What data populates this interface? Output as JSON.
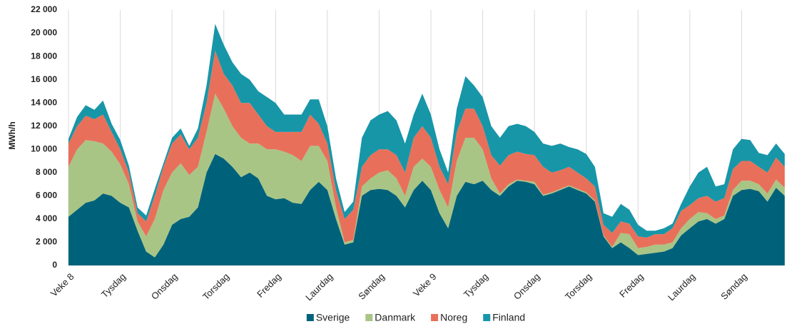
{
  "chart_data": {
    "type": "stacked_area",
    "y_label": "MWh/h",
    "categories": [
      "Veke 8",
      null,
      null,
      null,
      null,
      null,
      "Tysdag",
      null,
      null,
      null,
      null,
      null,
      "Onsdag",
      null,
      null,
      null,
      null,
      null,
      "Torsdag",
      null,
      null,
      null,
      null,
      null,
      "Fredag",
      null,
      null,
      null,
      null,
      null,
      "Laurdag",
      null,
      null,
      null,
      null,
      null,
      "Søndag",
      null,
      null,
      null,
      null,
      null,
      "Veke 9",
      null,
      null,
      null,
      null,
      null,
      "Tysdag",
      null,
      null,
      null,
      null,
      null,
      "Onsdag",
      null,
      null,
      null,
      null,
      null,
      "Torsdag",
      null,
      null,
      null,
      null,
      null,
      "Fredag",
      null,
      null,
      null,
      null,
      null,
      "Laurdag",
      null,
      null,
      null,
      null,
      null,
      "Søndag",
      null,
      null,
      null,
      null,
      null
    ],
    "series": [
      {
        "name": "Sverige",
        "color": "#00627a",
        "values": [
          4200,
          4800,
          5400,
          5600,
          6200,
          6000,
          5400,
          5000,
          3000,
          1200,
          700,
          1800,
          3500,
          4000,
          4200,
          5000,
          8000,
          9600,
          9200,
          8500,
          7600,
          8000,
          7500,
          6000,
          5700,
          5800,
          5400,
          5300,
          6500,
          7200,
          6500,
          4000,
          1800,
          2000,
          6000,
          6500,
          6600,
          6500,
          6000,
          5000,
          6500,
          7300,
          6500,
          4500,
          3200,
          6000,
          7200,
          7000,
          7300,
          6500,
          6000,
          6800,
          7300,
          7200,
          7000,
          6000,
          6200,
          6500,
          6800,
          6500,
          6200,
          5500,
          2500,
          1500,
          2000,
          1500,
          900,
          1000,
          1100,
          1200,
          1500,
          2600,
          3200,
          3800,
          4000,
          3600,
          4000,
          6000,
          6500,
          6600,
          6400,
          5500,
          6700,
          6000
        ]
      },
      {
        "name": "Danmark",
        "color": "#a9c585",
        "values": [
          4300,
          5200,
          5400,
          5100,
          4300,
          3800,
          3300,
          2000,
          800,
          1300,
          3300,
          4700,
          4500,
          4800,
          3600,
          3500,
          3500,
          5200,
          4300,
          3500,
          3400,
          2500,
          3000,
          4000,
          4300,
          4000,
          4100,
          3700,
          3800,
          3100,
          2500,
          1000,
          200,
          200,
          800,
          1000,
          1400,
          1700,
          1500,
          1000,
          2000,
          1900,
          2000,
          2000,
          1800,
          3000,
          3800,
          4000,
          2700,
          1000,
          200,
          200,
          100,
          100,
          200,
          100,
          100,
          100,
          100,
          100,
          100,
          100,
          100,
          100,
          800,
          1200,
          600,
          600,
          700,
          600,
          500,
          600,
          800,
          800,
          500,
          400,
          300,
          500,
          800,
          700,
          600,
          700,
          700,
          700
        ]
      },
      {
        "name": "Noreg",
        "color": "#e8705a",
        "values": [
          2000,
          2000,
          2100,
          1900,
          2500,
          1700,
          1300,
          1000,
          700,
          1300,
          2000,
          2000,
          2500,
          2500,
          2200,
          2500,
          2500,
          3700,
          3000,
          3500,
          3000,
          3500,
          2500,
          2000,
          1500,
          1700,
          2000,
          2500,
          2700,
          1900,
          1500,
          1500,
          2000,
          2600,
          1700,
          2000,
          2000,
          1800,
          2000,
          2000,
          2500,
          2800,
          2500,
          2000,
          2000,
          2500,
          2500,
          2500,
          2000,
          2000,
          2400,
          2500,
          2400,
          2300,
          2300,
          2400,
          1700,
          1600,
          1600,
          1400,
          1200,
          1200,
          900,
          1200,
          1000,
          900,
          1000,
          800,
          900,
          900,
          1200,
          1500,
          1200,
          1200,
          1500,
          1500,
          1500,
          1800,
          1700,
          1700,
          1500,
          1800,
          1900,
          1800
        ]
      },
      {
        "name": "Finland",
        "color": "#1796a8",
        "values": [
          400,
          800,
          900,
          800,
          1200,
          700,
          800,
          600,
          500,
          500,
          600,
          300,
          500,
          500,
          300,
          800,
          1500,
          2300,
          2500,
          2000,
          2500,
          2000,
          2000,
          2500,
          2500,
          1500,
          1500,
          1500,
          1300,
          2100,
          1500,
          1000,
          600,
          700,
          2500,
          3000,
          3000,
          3300,
          3000,
          2500,
          2000,
          2800,
          2000,
          1500,
          1000,
          2000,
          2800,
          2000,
          2500,
          2500,
          2400,
          2500,
          2400,
          2400,
          2000,
          2000,
          2300,
          2300,
          1700,
          2000,
          2100,
          1700,
          1000,
          1400,
          1500,
          1200,
          1000,
          600,
          300,
          500,
          400,
          600,
          1600,
          2200,
          2500,
          1300,
          1200,
          1700,
          1900,
          1800,
          1200,
          1500,
          1200,
          1100
        ]
      }
    ],
    "ylim": [
      0,
      22000
    ],
    "yticks": [
      0,
      {
        "value": 2000,
        "label": "2 000"
      },
      {
        "value": 4000,
        "label": "4 000"
      },
      {
        "value": 6000,
        "label": "6 000"
      },
      {
        "value": 8000,
        "label": "8 000"
      },
      {
        "value": 10000,
        "label": "10 000"
      },
      {
        "value": 12000,
        "label": "12 000"
      },
      {
        "value": 14000,
        "label": "14 000"
      },
      {
        "value": 16000,
        "label": "16 000"
      },
      {
        "value": 18000,
        "label": "18 000"
      },
      {
        "value": 20000,
        "label": "20 000"
      },
      {
        "value": 22000,
        "label": "22 000"
      }
    ],
    "grid": true,
    "legend": "bottom"
  }
}
